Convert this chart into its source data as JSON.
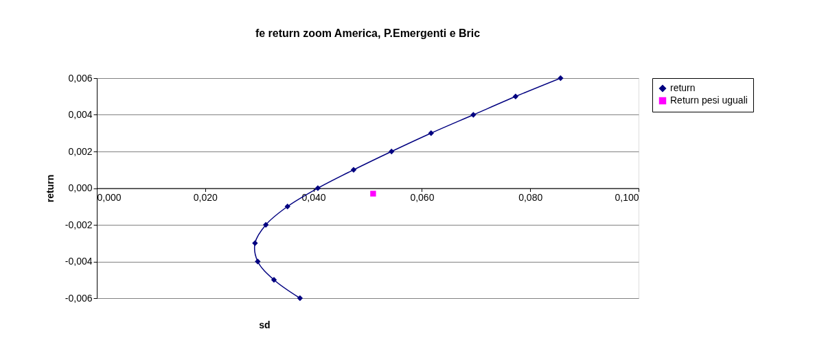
{
  "chart_data": {
    "type": "line",
    "title": "fe return zoom America, P.Emergenti e Bric",
    "xlabel": "sd",
    "ylabel": "return",
    "series": [
      {
        "name": "return",
        "color": "#000080",
        "marker": "diamond",
        "x": [
          0.0856,
          0.0773,
          0.0695,
          0.0617,
          0.0544,
          0.0474,
          0.0408,
          0.0352,
          0.0312,
          0.0292,
          0.0297,
          0.0327,
          0.0375
        ],
        "values": [
          0.006,
          0.005,
          0.004,
          0.003,
          0.002,
          0.001,
          0.0,
          -0.001,
          -0.002,
          -0.003,
          -0.004,
          -0.005,
          -0.006
        ]
      },
      {
        "name": "Return pesi uguali",
        "type": "scatter",
        "color": "#ff00ff",
        "marker": "square",
        "x": [
          0.051
        ],
        "values": [
          -0.0003
        ]
      }
    ],
    "xlim": [
      0,
      0.1
    ],
    "ylim": [
      -0.006,
      0.006
    ],
    "xticks": [
      {
        "value": 0,
        "label": "0,000"
      },
      {
        "value": 0.02,
        "label": "0,020"
      },
      {
        "value": 0.04,
        "label": "0,040"
      },
      {
        "value": 0.06,
        "label": "0,060"
      },
      {
        "value": 0.08,
        "label": "0,080"
      },
      {
        "value": 0.1,
        "label": "0,100"
      }
    ],
    "yticks": [
      {
        "value": -0.006,
        "label": "-0,006"
      },
      {
        "value": -0.004,
        "label": "-0,004"
      },
      {
        "value": -0.002,
        "label": "-0,002"
      },
      {
        "value": 0,
        "label": "0,000"
      },
      {
        "value": 0.002,
        "label": "0,002"
      },
      {
        "value": 0.004,
        "label": "0,004"
      },
      {
        "value": 0.006,
        "label": "0,006"
      }
    ],
    "grid": "y",
    "legend": "right",
    "line_style": "solid"
  }
}
